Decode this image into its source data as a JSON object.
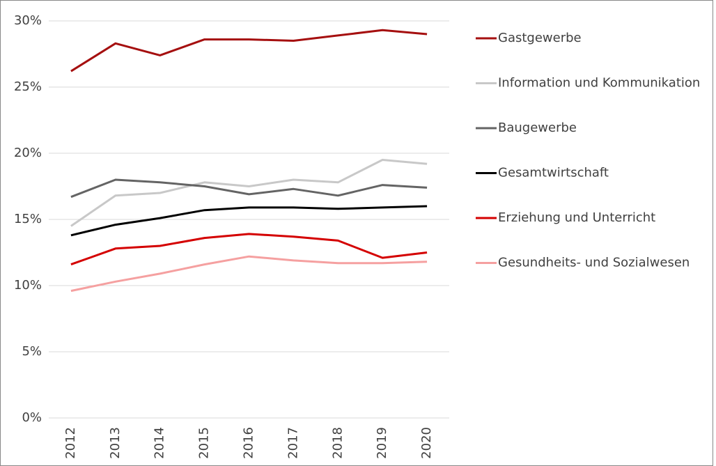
{
  "chart_data": {
    "type": "line",
    "categories": [
      "2012",
      "2013",
      "2014",
      "2015",
      "2016",
      "2017",
      "2018",
      "2019",
      "2020"
    ],
    "series": [
      {
        "name": "Gastgewerbe",
        "color": "#a50f0f",
        "values": [
          26.2,
          28.3,
          27.4,
          28.6,
          28.6,
          28.5,
          28.9,
          29.3,
          29.0
        ]
      },
      {
        "name": "Information und Kommunikation",
        "color": "#c8c8c8",
        "values": [
          14.5,
          16.8,
          17.0,
          17.8,
          17.5,
          18.0,
          17.8,
          19.5,
          19.2
        ]
      },
      {
        "name": "Baugewerbe",
        "color": "#646464",
        "values": [
          16.7,
          18.0,
          17.8,
          17.5,
          16.9,
          17.3,
          16.8,
          17.6,
          17.4
        ]
      },
      {
        "name": "Gesamtwirtschaft",
        "color": "#000000",
        "values": [
          13.8,
          14.6,
          15.1,
          15.7,
          15.9,
          15.9,
          15.8,
          15.9,
          16.0
        ]
      },
      {
        "name": "Erziehung und Unterricht",
        "color": "#d40000",
        "values": [
          11.6,
          12.8,
          13.0,
          13.6,
          13.9,
          13.7,
          13.4,
          12.1,
          12.5
        ]
      },
      {
        "name": "Gesundheits- und Sozialwesen",
        "color": "#f5a0a0",
        "values": [
          9.6,
          10.3,
          10.9,
          11.6,
          12.2,
          11.9,
          11.7,
          11.7,
          11.8
        ]
      }
    ],
    "ylim": [
      0,
      30
    ],
    "yticks": [
      {
        "value": 0,
        "label": "0%"
      },
      {
        "value": 5,
        "label": "5%"
      },
      {
        "value": 10,
        "label": "10%"
      },
      {
        "value": 15,
        "label": "15%"
      },
      {
        "value": 20,
        "label": "20%"
      },
      {
        "value": 25,
        "label": "25%"
      },
      {
        "value": 30,
        "label": "30%"
      }
    ],
    "grid": true,
    "legend": "right"
  }
}
